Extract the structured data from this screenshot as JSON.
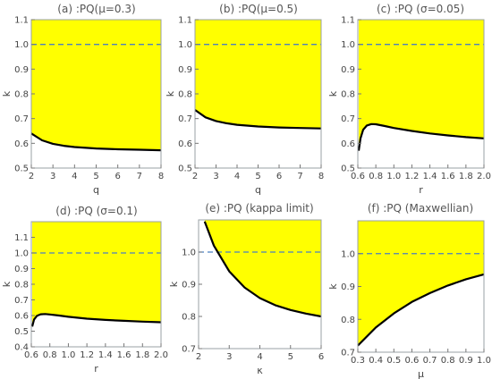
{
  "colors": {
    "region": "#ffff00",
    "frame": "#9aa0a6",
    "curve": "#000000",
    "dashed": "#4a7fc1"
  },
  "chart_data": [
    {
      "type": "area",
      "title": "(a) :PQ(μ=0.3)",
      "xlabel": "q",
      "ylabel": "k",
      "xlim": [
        2,
        8
      ],
      "ylim": [
        0.5,
        1.1
      ],
      "xticks": [
        2,
        3,
        4,
        5,
        6,
        7,
        8
      ],
      "yticks": [
        0.5,
        0.6,
        0.7,
        0.8,
        0.9,
        1.0,
        1.1
      ],
      "xtick_labels": [
        "2",
        "3",
        "4",
        "5",
        "6",
        "7",
        "8"
      ],
      "ytick_labels": [
        "0.5",
        "0.6",
        "0.7",
        "0.8",
        "0.9",
        "1.0",
        "1.1"
      ],
      "reference_line": 1.0,
      "boundary": {
        "x": [
          2,
          2.5,
          3,
          3.5,
          4,
          5,
          6,
          7,
          8
        ],
        "y": [
          0.64,
          0.612,
          0.598,
          0.59,
          0.585,
          0.579,
          0.576,
          0.574,
          0.572
        ]
      },
      "fill": "above"
    },
    {
      "type": "area",
      "title": "(b) :PQ(μ=0.5)",
      "xlabel": "q",
      "ylabel": "k",
      "xlim": [
        2,
        8
      ],
      "ylim": [
        0.5,
        1.1
      ],
      "xticks": [
        2,
        3,
        4,
        5,
        6,
        7,
        8
      ],
      "yticks": [
        0.5,
        0.6,
        0.7,
        0.8,
        0.9,
        1.0,
        1.1
      ],
      "xtick_labels": [
        "2",
        "3",
        "4",
        "5",
        "6",
        "7",
        "8"
      ],
      "ytick_labels": [
        "0.5",
        "0.6",
        "0.7",
        "0.8",
        "0.9",
        "1.0",
        "1.1"
      ],
      "reference_line": 1.0,
      "boundary": {
        "x": [
          2,
          2.5,
          3,
          3.5,
          4,
          5,
          6,
          7,
          8
        ],
        "y": [
          0.735,
          0.705,
          0.69,
          0.681,
          0.675,
          0.668,
          0.664,
          0.662,
          0.66
        ]
      },
      "fill": "above"
    },
    {
      "type": "area",
      "title": "(c) :PQ (σ=0.05)",
      "xlabel": "r",
      "ylabel": "k",
      "xlim": [
        0.6,
        2.0
      ],
      "ylim": [
        0.5,
        1.1
      ],
      "xticks": [
        0.6,
        0.8,
        1.0,
        1.2,
        1.4,
        1.6,
        1.8,
        2.0
      ],
      "yticks": [
        0.5,
        0.6,
        0.7,
        0.8,
        0.9,
        1.0,
        1.1
      ],
      "xtick_labels": [
        "0.6",
        "0.8",
        "1.0",
        "1.2",
        "1.4",
        "1.6",
        "1.8",
        "2.0"
      ],
      "ytick_labels": [
        "0.5",
        "0.6",
        "0.7",
        "0.8",
        "0.9",
        "1.0",
        "1.1"
      ],
      "reference_line": 1.0,
      "boundary": {
        "x": [
          0.61,
          0.63,
          0.66,
          0.7,
          0.75,
          0.8,
          0.9,
          1.0,
          1.2,
          1.4,
          1.6,
          1.8,
          2.0
        ],
        "y": [
          0.57,
          0.62,
          0.655,
          0.672,
          0.678,
          0.677,
          0.67,
          0.662,
          0.65,
          0.64,
          0.632,
          0.625,
          0.62
        ]
      },
      "fill": "above"
    },
    {
      "type": "area",
      "title": "(d) :PQ (σ=0.1)",
      "xlabel": "r",
      "ylabel": "k",
      "xlim": [
        0.6,
        2.0
      ],
      "ylim": [
        0.4,
        1.2
      ],
      "xticks": [
        0.6,
        0.8,
        1.0,
        1.2,
        1.4,
        1.6,
        1.8,
        2.0
      ],
      "yticks": [
        0.4,
        0.5,
        0.6,
        0.7,
        0.8,
        0.9,
        1.0,
        1.1
      ],
      "xtick_labels": [
        "0.6",
        "0.8",
        "1.0",
        "1.2",
        "1.4",
        "1.6",
        "1.8",
        "2.0"
      ],
      "ytick_labels": [
        "0.4",
        "0.5",
        "0.6",
        "0.7",
        "0.8",
        "0.9",
        "1.0",
        "1.1"
      ],
      "reference_line": 1.0,
      "boundary": {
        "x": [
          0.61,
          0.63,
          0.66,
          0.7,
          0.75,
          0.8,
          0.9,
          1.0,
          1.2,
          1.4,
          1.6,
          1.8,
          2.0
        ],
        "y": [
          0.53,
          0.575,
          0.598,
          0.608,
          0.61,
          0.607,
          0.6,
          0.592,
          0.58,
          0.572,
          0.566,
          0.561,
          0.557
        ]
      },
      "fill": "above"
    },
    {
      "type": "area",
      "title": "(e) :PQ (kappa limit)",
      "xlabel": "κ",
      "ylabel": "k",
      "xlim": [
        2,
        6
      ],
      "ylim": [
        0.7,
        1.1
      ],
      "xticks": [
        2,
        3,
        4,
        5,
        6
      ],
      "yticks": [
        0.7,
        0.8,
        0.9,
        1.0
      ],
      "xtick_labels": [
        "2",
        "3",
        "4",
        "5",
        "6"
      ],
      "ytick_labels": [
        "0.7",
        "0.8",
        "0.9",
        "1.0"
      ],
      "reference_line": 1.0,
      "boundary": {
        "x": [
          2.2,
          2.5,
          3,
          3.5,
          4,
          4.5,
          5,
          5.5,
          6
        ],
        "y": [
          1.095,
          1.02,
          0.94,
          0.89,
          0.857,
          0.835,
          0.82,
          0.809,
          0.8
        ]
      },
      "fill": "above"
    },
    {
      "type": "area",
      "title": "(f) :PQ (Maxwellian)",
      "xlabel": "μ",
      "ylabel": "k",
      "xlim": [
        0.3,
        1.0
      ],
      "ylim": [
        0.7,
        1.1
      ],
      "xticks": [
        0.3,
        0.4,
        0.5,
        0.6,
        0.7,
        0.8,
        0.9,
        1.0
      ],
      "yticks": [
        0.7,
        0.8,
        0.9,
        1.0
      ],
      "xtick_labels": [
        "0.3",
        "0.4",
        "0.5",
        "0.6",
        "0.7",
        "0.8",
        "0.9",
        "1.0"
      ],
      "ytick_labels": [
        "0.7",
        "0.8",
        "0.9",
        "1.0"
      ],
      "reference_line": 1.0,
      "boundary": {
        "x": [
          0.3,
          0.4,
          0.5,
          0.6,
          0.7,
          0.8,
          0.9,
          1.0
        ],
        "y": [
          0.72,
          0.775,
          0.818,
          0.853,
          0.88,
          0.903,
          0.922,
          0.937
        ]
      },
      "fill": "above"
    }
  ]
}
